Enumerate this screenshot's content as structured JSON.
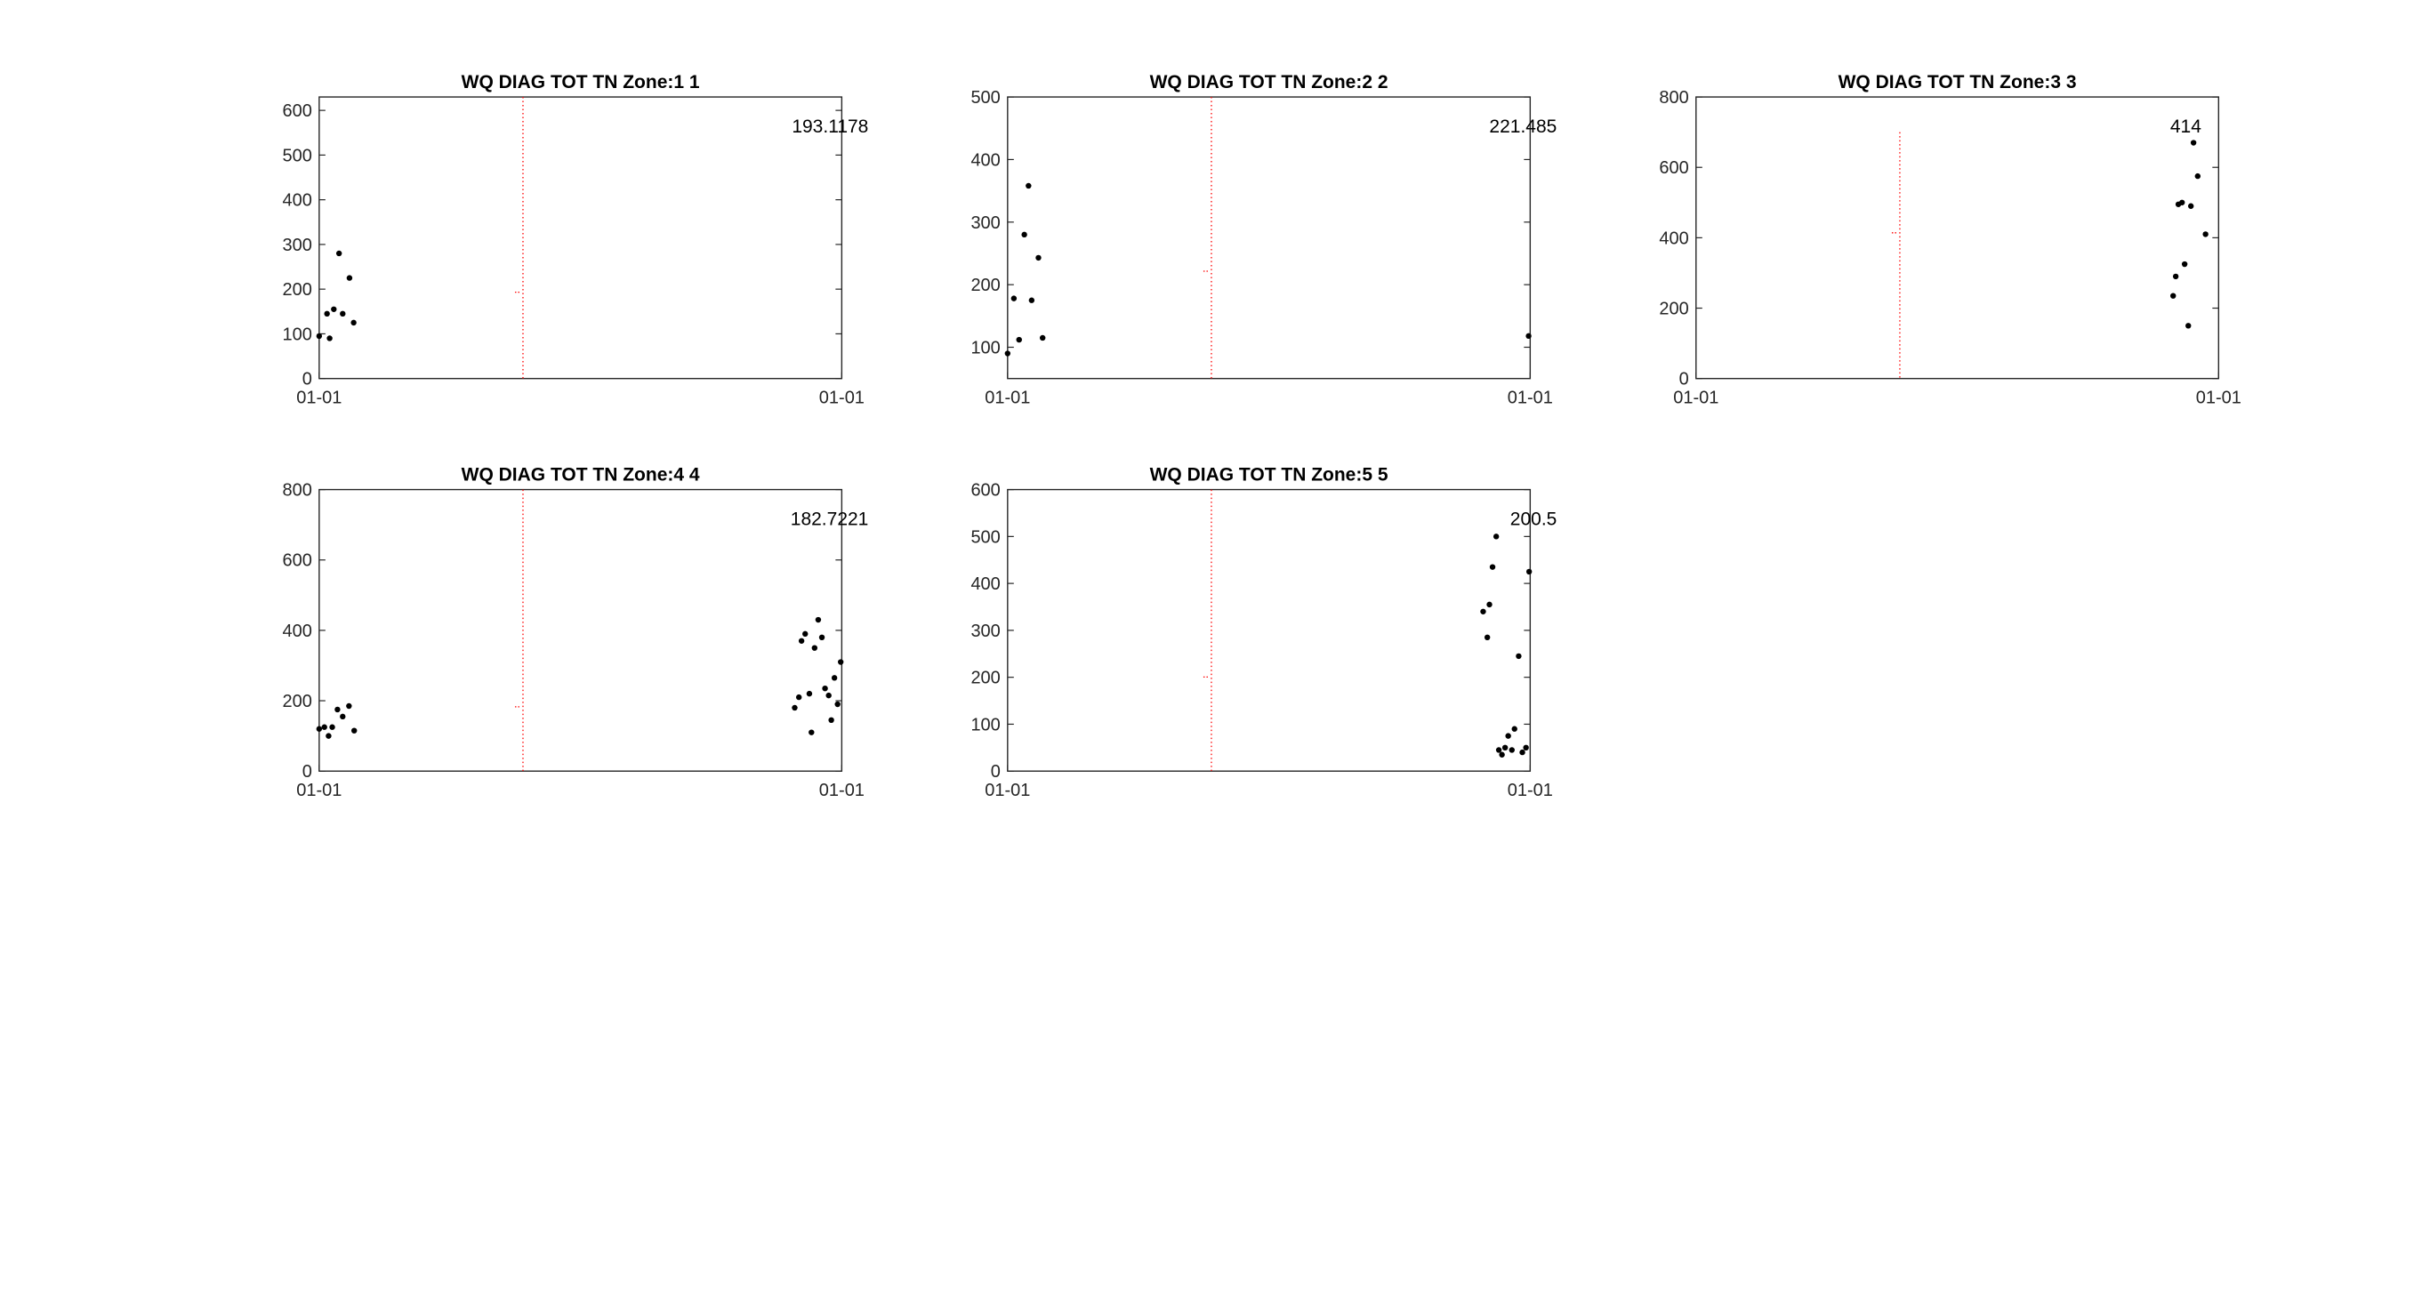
{
  "chart_data": [
    {
      "type": "scatter",
      "title": "WQ DIAG TOT TN Zone:1 1",
      "ylim": [
        0,
        630
      ],
      "yticks": [
        0,
        100,
        200,
        300,
        400,
        500,
        600
      ],
      "xlim": [
        0,
        1
      ],
      "xtick_labels": [
        "01-01",
        "01-01"
      ],
      "annotation": "193.1178",
      "reference_line": {
        "x": 0.39,
        "y_mark": 193.1178,
        "color": "#ff0000"
      },
      "points": [
        [
          0.0,
          95
        ],
        [
          0.02,
          90
        ],
        [
          0.015,
          145
        ],
        [
          0.028,
          155
        ],
        [
          0.038,
          280
        ],
        [
          0.045,
          145
        ],
        [
          0.058,
          225
        ],
        [
          0.066,
          125
        ]
      ],
      "marker_color": "#000000"
    },
    {
      "type": "scatter",
      "title": "WQ DIAG TOT TN Zone:2 2",
      "ylim": [
        50,
        500
      ],
      "yticks": [
        100,
        200,
        300,
        400,
        500
      ],
      "xlim": [
        0,
        1
      ],
      "xtick_labels": [
        "01-01",
        "01-01"
      ],
      "annotation": "221.485",
      "reference_line": {
        "x": 0.39,
        "y_mark": 221.485,
        "color": "#ff0000"
      },
      "points": [
        [
          0.0,
          90
        ],
        [
          0.012,
          178
        ],
        [
          0.022,
          112
        ],
        [
          0.032,
          280
        ],
        [
          0.04,
          358
        ],
        [
          0.046,
          175
        ],
        [
          0.059,
          243
        ],
        [
          0.067,
          115
        ],
        [
          0.997,
          118
        ]
      ],
      "marker_color": "#000000"
    },
    {
      "type": "scatter",
      "title": "WQ DIAG TOT TN Zone:3 3",
      "ylim": [
        0,
        800
      ],
      "yticks": [
        0,
        200,
        400,
        600,
        800
      ],
      "xlim": [
        0,
        1
      ],
      "xtick_labels": [
        "01-01",
        "01-01"
      ],
      "annotation": "414",
      "reference_line": {
        "x": 0.39,
        "y_mark": 414,
        "color": "#ff0000",
        "y_top": 700
      },
      "points": [
        [
          0.913,
          235
        ],
        [
          0.918,
          290
        ],
        [
          0.923,
          495
        ],
        [
          0.93,
          500
        ],
        [
          0.935,
          325
        ],
        [
          0.942,
          150
        ],
        [
          0.947,
          490
        ],
        [
          0.952,
          670
        ],
        [
          0.96,
          575
        ],
        [
          0.975,
          410
        ]
      ],
      "marker_color": "#000000"
    },
    {
      "type": "scatter",
      "title": "WQ DIAG TOT TN Zone:4 4",
      "ylim": [
        0,
        800
      ],
      "yticks": [
        0,
        200,
        400,
        600,
        800
      ],
      "xlim": [
        0,
        1
      ],
      "xtick_labels": [
        "01-01",
        "01-01"
      ],
      "annotation": "182.7221",
      "reference_line": {
        "x": 0.39,
        "y_mark": 182.7221,
        "color": "#ff0000"
      },
      "points": [
        [
          0.0,
          120
        ],
        [
          0.01,
          125
        ],
        [
          0.018,
          100
        ],
        [
          0.025,
          125
        ],
        [
          0.035,
          175
        ],
        [
          0.045,
          155
        ],
        [
          0.057,
          185
        ],
        [
          0.067,
          115
        ],
        [
          0.91,
          180
        ],
        [
          0.918,
          210
        ],
        [
          0.923,
          370
        ],
        [
          0.93,
          390
        ],
        [
          0.938,
          220
        ],
        [
          0.942,
          110
        ],
        [
          0.948,
          350
        ],
        [
          0.955,
          430
        ],
        [
          0.962,
          380
        ],
        [
          0.968,
          235
        ],
        [
          0.975,
          215
        ],
        [
          0.98,
          145
        ],
        [
          0.986,
          265
        ],
        [
          0.992,
          190
        ],
        [
          0.998,
          310
        ]
      ],
      "marker_color": "#000000"
    },
    {
      "type": "scatter",
      "title": "WQ DIAG TOT TN Zone:5 5",
      "ylim": [
        0,
        600
      ],
      "yticks": [
        0,
        100,
        200,
        300,
        400,
        500,
        600
      ],
      "xlim": [
        0,
        1
      ],
      "xtick_labels": [
        "01-01",
        "01-01"
      ],
      "annotation": "200.5",
      "reference_line": {
        "x": 0.39,
        "y_mark": 200.5,
        "color": "#ff0000"
      },
      "points": [
        [
          0.91,
          340
        ],
        [
          0.918,
          285
        ],
        [
          0.922,
          355
        ],
        [
          0.928,
          435
        ],
        [
          0.935,
          500
        ],
        [
          0.94,
          45
        ],
        [
          0.946,
          35
        ],
        [
          0.952,
          50
        ],
        [
          0.958,
          75
        ],
        [
          0.965,
          45
        ],
        [
          0.97,
          90
        ],
        [
          0.978,
          245
        ],
        [
          0.985,
          40
        ],
        [
          0.992,
          50
        ],
        [
          0.998,
          425
        ]
      ],
      "marker_color": "#000000"
    }
  ]
}
